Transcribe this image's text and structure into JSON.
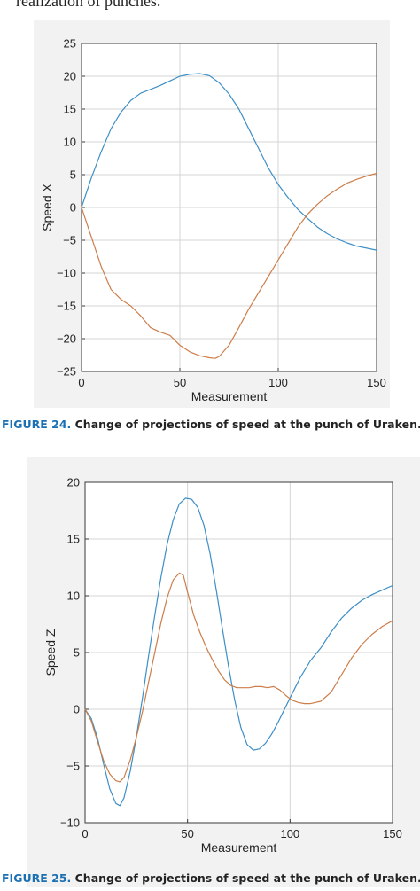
{
  "top_text": "realization of punches.",
  "captions": [
    {
      "figure": "FIGURE 24.",
      "text": "Change of projections of speed at the punch of Uraken."
    },
    {
      "figure": "FIGURE 25.",
      "text": "Change of projections of speed at the punch of Uraken."
    }
  ],
  "colors": {
    "series_blue": "#3d8fc6",
    "series_orange": "#cc7e4a",
    "grid": "#d4d4d4",
    "panel_bg": "#f2f2f2"
  },
  "chart_data": [
    {
      "type": "line",
      "title": "",
      "xlabel": "Measurement",
      "ylabel": "Speed X",
      "xlim": [
        0,
        150
      ],
      "ylim": [
        -25,
        25
      ],
      "xticks": [
        0,
        50,
        100,
        150
      ],
      "yticks": [
        25,
        20,
        15,
        10,
        5,
        0,
        -5,
        -10,
        -15,
        -20,
        -25
      ],
      "grid": true,
      "series": [
        {
          "x": [
            0,
            5,
            10,
            15,
            20,
            25,
            30,
            35,
            40,
            45,
            50,
            55,
            60,
            65,
            70,
            75,
            80,
            85,
            90,
            95,
            100,
            105,
            110,
            115,
            120,
            125,
            130,
            135,
            140,
            145,
            150
          ],
          "values": [
            0,
            4.5,
            8.5,
            12,
            14.5,
            16.3,
            17.4,
            18,
            18.6,
            19.3,
            20,
            20.3,
            20.4,
            20.1,
            19,
            17.3,
            15,
            12,
            9,
            6,
            3.5,
            1.5,
            -0.3,
            -1.7,
            -3,
            -4,
            -4.8,
            -5.4,
            -5.9,
            -6.2,
            -6.5
          ]
        },
        {
          "x": [
            0,
            5,
            10,
            15,
            20,
            25,
            30,
            35,
            40,
            45,
            50,
            55,
            60,
            65,
            68,
            70,
            75,
            80,
            85,
            90,
            95,
            100,
            105,
            110,
            115,
            120,
            125,
            130,
            135,
            140,
            145,
            150
          ],
          "values": [
            0,
            -4.5,
            -9,
            -12.5,
            -14,
            -15,
            -16.5,
            -18.3,
            -19,
            -19.5,
            -21,
            -22,
            -22.6,
            -22.9,
            -23,
            -22.7,
            -21,
            -18.3,
            -15.5,
            -13,
            -10.5,
            -8,
            -5.5,
            -3,
            -1,
            0.5,
            1.8,
            2.8,
            3.7,
            4.3,
            4.8,
            5.2
          ]
        }
      ]
    },
    {
      "type": "line",
      "title": "",
      "xlabel": "Measurement",
      "ylabel": "Speed Z",
      "xlim": [
        0,
        150
      ],
      "ylim": [
        -10,
        20
      ],
      "xticks": [
        0,
        50,
        100,
        150
      ],
      "yticks": [
        20,
        15,
        10,
        5,
        0,
        -5,
        -10
      ],
      "grid": true,
      "series": [
        {
          "x": [
            0,
            3,
            6,
            9,
            12,
            15,
            17,
            19,
            22,
            25,
            28,
            31,
            34,
            37,
            40,
            43,
            46,
            49,
            52,
            55,
            58,
            61,
            64,
            67,
            70,
            73,
            76,
            79,
            82,
            85,
            88,
            91,
            94,
            97,
            100,
            105,
            110,
            115,
            120,
            125,
            130,
            135,
            140,
            145,
            150
          ],
          "values": [
            0,
            -0.8,
            -2.5,
            -4.8,
            -7,
            -8.3,
            -8.5,
            -7.8,
            -5.5,
            -2.5,
            1,
            4.7,
            8.3,
            11.6,
            14.5,
            16.7,
            18.1,
            18.6,
            18.5,
            17.8,
            16.2,
            13.7,
            10.5,
            7.1,
            3.8,
            0.8,
            -1.6,
            -3.1,
            -3.6,
            -3.5,
            -3,
            -2.2,
            -1.2,
            -0.1,
            1,
            2.8,
            4.3,
            5.4,
            6.8,
            8,
            8.9,
            9.6,
            10.1,
            10.5,
            10.9
          ]
        },
        {
          "x": [
            0,
            3,
            6,
            9,
            12,
            15,
            17,
            19,
            22,
            25,
            28,
            31,
            34,
            37,
            40,
            43,
            46,
            48,
            50,
            53,
            56,
            59,
            62,
            65,
            68,
            71,
            74,
            77,
            80,
            83,
            86,
            89,
            92,
            95,
            98,
            101,
            104,
            107,
            110,
            115,
            120,
            125,
            130,
            135,
            140,
            145,
            150
          ],
          "values": [
            0,
            -1,
            -2.8,
            -4.5,
            -5.7,
            -6.3,
            -6.4,
            -6,
            -4.5,
            -2.5,
            -0.2,
            2.4,
            5,
            7.6,
            9.8,
            11.4,
            12,
            11.8,
            10.3,
            8.3,
            6.8,
            5.5,
            4.4,
            3.4,
            2.6,
            2.1,
            1.9,
            1.9,
            1.9,
            2,
            2,
            1.9,
            2,
            1.7,
            1.2,
            0.8,
            0.6,
            0.5,
            0.5,
            0.7,
            1.5,
            3,
            4.5,
            5.7,
            6.6,
            7.3,
            7.8
          ]
        }
      ]
    }
  ]
}
